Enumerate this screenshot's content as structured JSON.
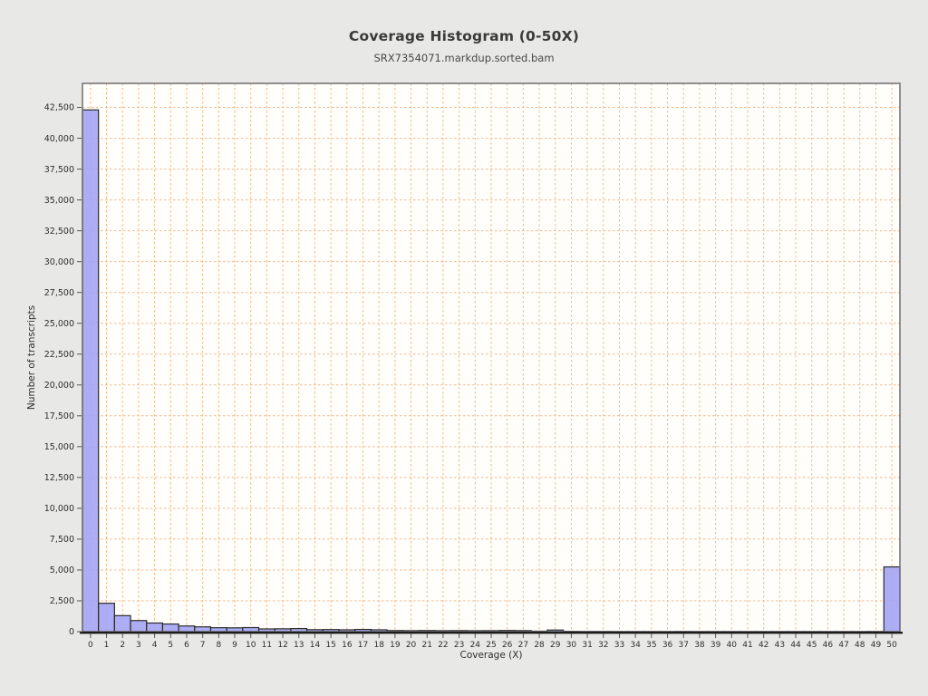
{
  "chart_data": {
    "type": "bar",
    "title": "Coverage Histogram (0-50X)",
    "subtitle": "SRX7354071.markdup.sorted.bam",
    "xlabel": "Coverage (X)",
    "ylabel": "Number of transcripts",
    "categories": [
      "0",
      "1",
      "2",
      "3",
      "4",
      "5",
      "6",
      "7",
      "8",
      "9",
      "10",
      "11",
      "12",
      "13",
      "14",
      "15",
      "16",
      "17",
      "18",
      "19",
      "20",
      "21",
      "22",
      "23",
      "24",
      "25",
      "26",
      "27",
      "28",
      "29",
      "30",
      "31",
      "32",
      "33",
      "34",
      "35",
      "36",
      "37",
      "38",
      "39",
      "40",
      "41",
      "42",
      "43",
      "44",
      "45",
      "46",
      "47",
      "48",
      "49",
      "50"
    ],
    "values": [
      42300,
      2300,
      1300,
      900,
      700,
      620,
      460,
      390,
      320,
      310,
      330,
      220,
      230,
      250,
      160,
      170,
      150,
      180,
      150,
      90,
      80,
      90,
      80,
      85,
      75,
      80,
      95,
      85,
      40,
      130,
      30,
      20,
      20,
      15,
      15,
      15,
      15,
      20,
      15,
      15,
      15,
      15,
      15,
      15,
      15,
      15,
      15,
      15,
      15,
      20,
      5250
    ],
    "ylim": [
      0,
      44450
    ],
    "ytick_values": [
      0,
      2500,
      5000,
      7500,
      10000,
      12500,
      15000,
      17500,
      20000,
      22500,
      25000,
      27500,
      30000,
      32500,
      35000,
      37500,
      40000,
      42500
    ],
    "ytick_labels": [
      "0",
      "2,500",
      "5,000",
      "7,500",
      "10,000",
      "12,500",
      "15,000",
      "17,500",
      "20,000",
      "22,500",
      "25,000",
      "27,500",
      "30,000",
      "32,500",
      "35,000",
      "37,500",
      "40,000",
      "42,500"
    ],
    "grid": "dashed vertical and horizontal gridlines at every tick",
    "legend": "none",
    "colors": {
      "page_background": "#e8e8e6",
      "plot_background": "#fffefb",
      "bar_fill": "#a1a2f4",
      "bar_edge": "#2b2b2b",
      "gridline": "#f1b98c",
      "plot_border": "#6e6e6e",
      "axis_line": "#1c1c1c",
      "text": "#2e2e2e"
    }
  }
}
